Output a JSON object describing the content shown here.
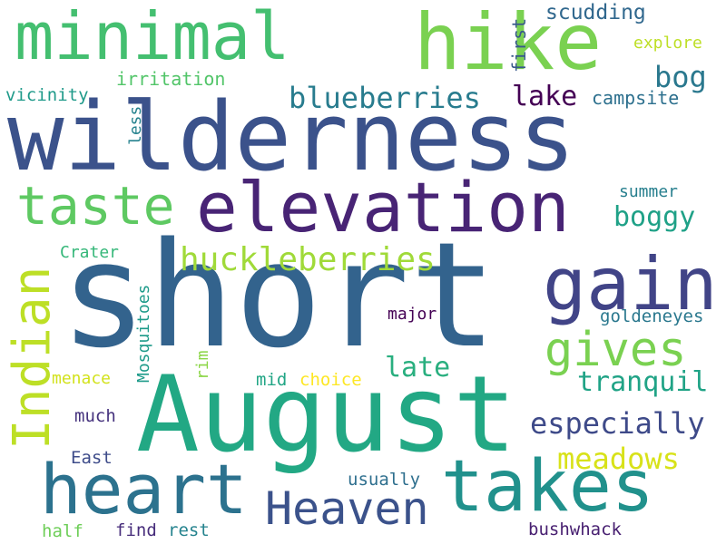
{
  "words": {
    "wilderness": {
      "text": "wilderness",
      "color": "#3b528b"
    },
    "short": {
      "text": "short",
      "color": "#33638d"
    },
    "august": {
      "text": "August",
      "color": "#22a884"
    },
    "hike": {
      "text": "hike",
      "color": "#7ad151"
    },
    "minimal": {
      "text": "minimal",
      "color": "#44bf70"
    },
    "elevation": {
      "text": "elevation",
      "color": "#482475"
    },
    "gain": {
      "text": "gain",
      "color": "#414487"
    },
    "heart": {
      "text": "heart",
      "color": "#2c728e"
    },
    "takes": {
      "text": "takes",
      "color": "#21918c"
    },
    "heaven": {
      "text": "Heaven",
      "color": "#3b528b"
    },
    "taste": {
      "text": "taste",
      "color": "#5ec962"
    },
    "indian": {
      "text": "Indian",
      "color": "#bddf26"
    },
    "gives": {
      "text": "gives",
      "color": "#7ad151"
    },
    "huckleberries": {
      "text": "huckleberries",
      "color": "#a0da39"
    },
    "blueberries": {
      "text": "blueberries",
      "color": "#287c8e"
    },
    "lake": {
      "text": "lake",
      "color": "#440154"
    },
    "bog": {
      "text": "bog",
      "color": "#2a788e"
    },
    "boggy": {
      "text": "boggy",
      "color": "#1fa187"
    },
    "late": {
      "text": "late",
      "color": "#29af7f"
    },
    "tranquil": {
      "text": "tranquil",
      "color": "#20a386"
    },
    "especially": {
      "text": "especially",
      "color": "#3e4a89"
    },
    "meadows": {
      "text": "meadows",
      "color": "#d8e219"
    },
    "scudding": {
      "text": "scudding",
      "color": "#31688e"
    },
    "explore": {
      "text": "explore",
      "color": "#bddf26"
    },
    "first": {
      "text": "first",
      "color": "#38598c"
    },
    "campsite": {
      "text": "campsite",
      "color": "#2d708e"
    },
    "irritation": {
      "text": "irritation",
      "color": "#52c569"
    },
    "vicinity": {
      "text": "vicinity",
      "color": "#1f9a8a"
    },
    "less": {
      "text": "less",
      "color": "#26828e"
    },
    "summer": {
      "text": "summer",
      "color": "#277f8e"
    },
    "crater": {
      "text": "Crater",
      "color": "#35b779"
    },
    "mosquitoes": {
      "text": "Mosquitoes",
      "color": "#1e9b8a"
    },
    "major": {
      "text": "major",
      "color": "#440154"
    },
    "goldeneyes": {
      "text": "goldeneyes",
      "color": "#2a788e"
    },
    "menace": {
      "text": "menace",
      "color": "#d2e21b"
    },
    "rim": {
      "text": "rim",
      "color": "#8bd646"
    },
    "mid": {
      "text": "mid",
      "color": "#21a585"
    },
    "choice": {
      "text": "choice",
      "color": "#fde725"
    },
    "much": {
      "text": "much",
      "color": "#46337e"
    },
    "east": {
      "text": "East",
      "color": "#3e4c8a"
    },
    "usually": {
      "text": "usually",
      "color": "#2e6f8e"
    },
    "half": {
      "text": "half",
      "color": "#6ece58"
    },
    "find": {
      "text": "find",
      "color": "#472d7b"
    },
    "rest": {
      "text": "rest",
      "color": "#25838e"
    },
    "bushwhack": {
      "text": "bushwhack",
      "color": "#482071"
    }
  }
}
